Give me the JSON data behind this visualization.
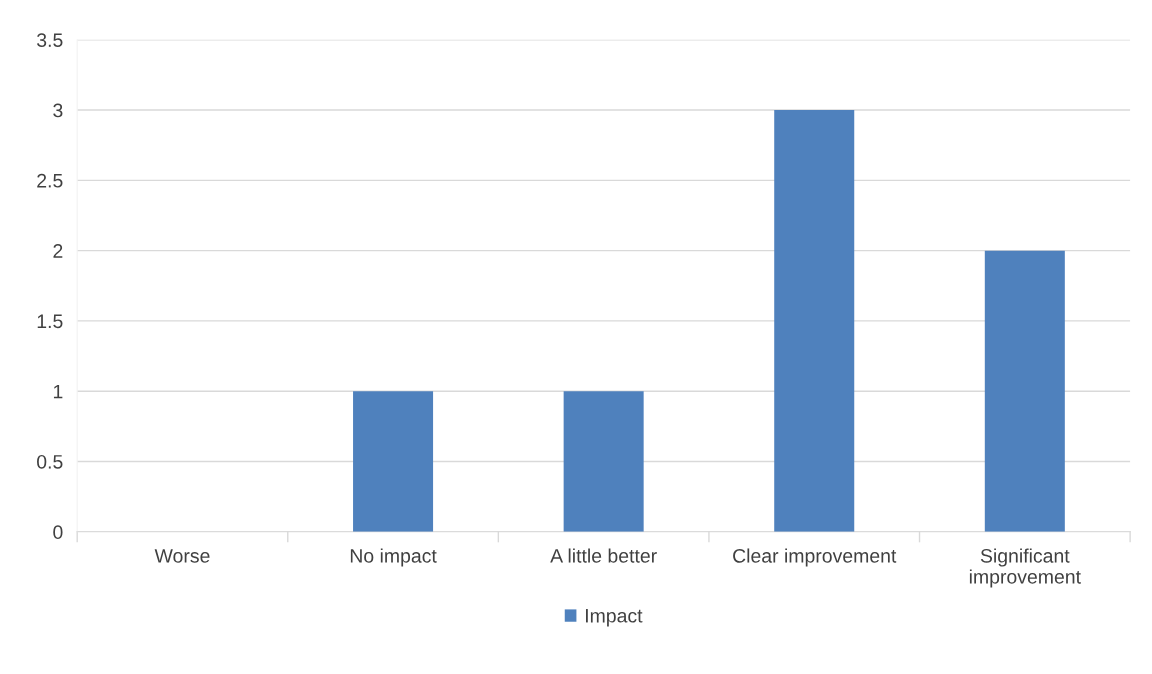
{
  "chart_data": {
    "type": "bar",
    "categories": [
      "Worse",
      "No impact",
      "A little better",
      "Clear improvement",
      "Significant\nimprovement"
    ],
    "series": [
      {
        "name": "Impact",
        "color": "#4f81bd",
        "values": [
          0,
          1,
          1,
          3,
          2
        ]
      }
    ],
    "ylim": [
      0,
      3.5
    ],
    "yticks": [
      0,
      0.5,
      1,
      1.5,
      2,
      2.5,
      3,
      3.5
    ],
    "grid": "y",
    "legend": "bottom"
  }
}
